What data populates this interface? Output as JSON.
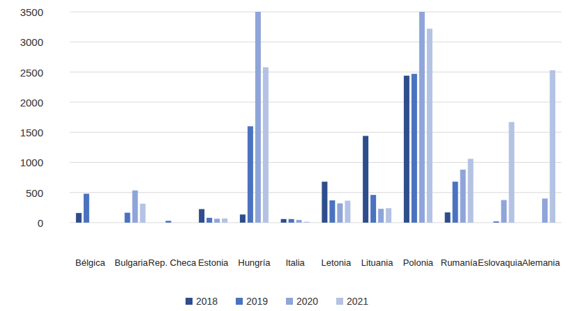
{
  "chart_data": {
    "type": "bar",
    "categories": [
      "Bélgica",
      "Bulgaria",
      "Rep. Checa",
      "Estonia",
      "Hungría",
      "Italia",
      "Letonia",
      "Lituania",
      "Polonia",
      "Rumanía",
      "Eslovaquia",
      "Alemania"
    ],
    "series": [
      {
        "name": "2018",
        "color": "#2e4d8c",
        "values": [
          160,
          0,
          0,
          225,
          135,
          60,
          680,
          1440,
          2440,
          170,
          0,
          0
        ]
      },
      {
        "name": "2019",
        "color": "#4a72bf",
        "values": [
          480,
          165,
          30,
          80,
          1600,
          60,
          370,
          460,
          2470,
          680,
          20,
          0
        ]
      },
      {
        "name": "2020",
        "color": "#8fa5d9",
        "values": [
          0,
          535,
          0,
          65,
          3500,
          45,
          320,
          230,
          3500,
          880,
          375,
          400
        ]
      },
      {
        "name": "2021",
        "color": "#b4c2e3",
        "values": [
          0,
          315,
          0,
          70,
          2580,
          15,
          365,
          240,
          3220,
          1060,
          1670,
          2530
        ]
      }
    ],
    "ylim": [
      0,
      3500
    ],
    "yticks": [
      0,
      500,
      1000,
      1500,
      2000,
      2500,
      3000,
      3500
    ],
    "grid": true,
    "legend": "bottom"
  }
}
